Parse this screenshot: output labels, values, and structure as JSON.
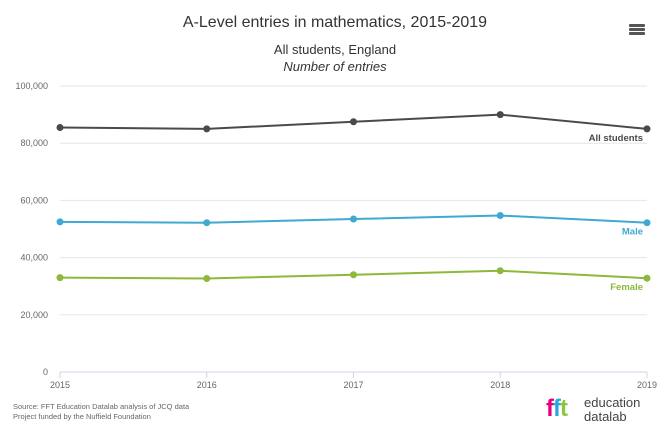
{
  "chart_data": {
    "type": "line",
    "title": "A-Level entries in mathematics, 2015-2019",
    "subtitle_line1": "All students, England",
    "subtitle_line2": "Number of entries",
    "xlabel": "",
    "ylabel": "",
    "x": [
      2015,
      2016,
      2017,
      2018,
      2019
    ],
    "x_tick_labels": [
      "2015",
      "2016",
      "2017",
      "2018",
      "2019"
    ],
    "ylim": [
      0,
      100000
    ],
    "y_tick_values": [
      0,
      20000,
      40000,
      60000,
      80000,
      100000
    ],
    "y_tick_labels": [
      "0",
      "20,000",
      "40,000",
      "60,000",
      "80,000",
      "100,000"
    ],
    "grid": true,
    "legend": "series labels at the end of each line",
    "series": [
      {
        "name": "All students",
        "color": "#4a4a4a",
        "values": [
          85500,
          85000,
          87500,
          90000,
          85000
        ]
      },
      {
        "name": "Male",
        "color": "#3fa9d0",
        "values": [
          52500,
          52200,
          53500,
          54700,
          52200
        ]
      },
      {
        "name": "Female",
        "color": "#8db83a",
        "values": [
          33000,
          32700,
          34000,
          35400,
          32800
        ]
      }
    ]
  },
  "source_line1": "Source: FFT Education Datalab analysis of JCQ data",
  "source_line2": "Project funded by the Nuffield Foundation",
  "logo": {
    "mark_f1": "f",
    "mark_f2": "f",
    "mark_t": "t",
    "line1": "education",
    "line2": "datalab"
  },
  "menu_icon": "hamburger-menu-icon"
}
